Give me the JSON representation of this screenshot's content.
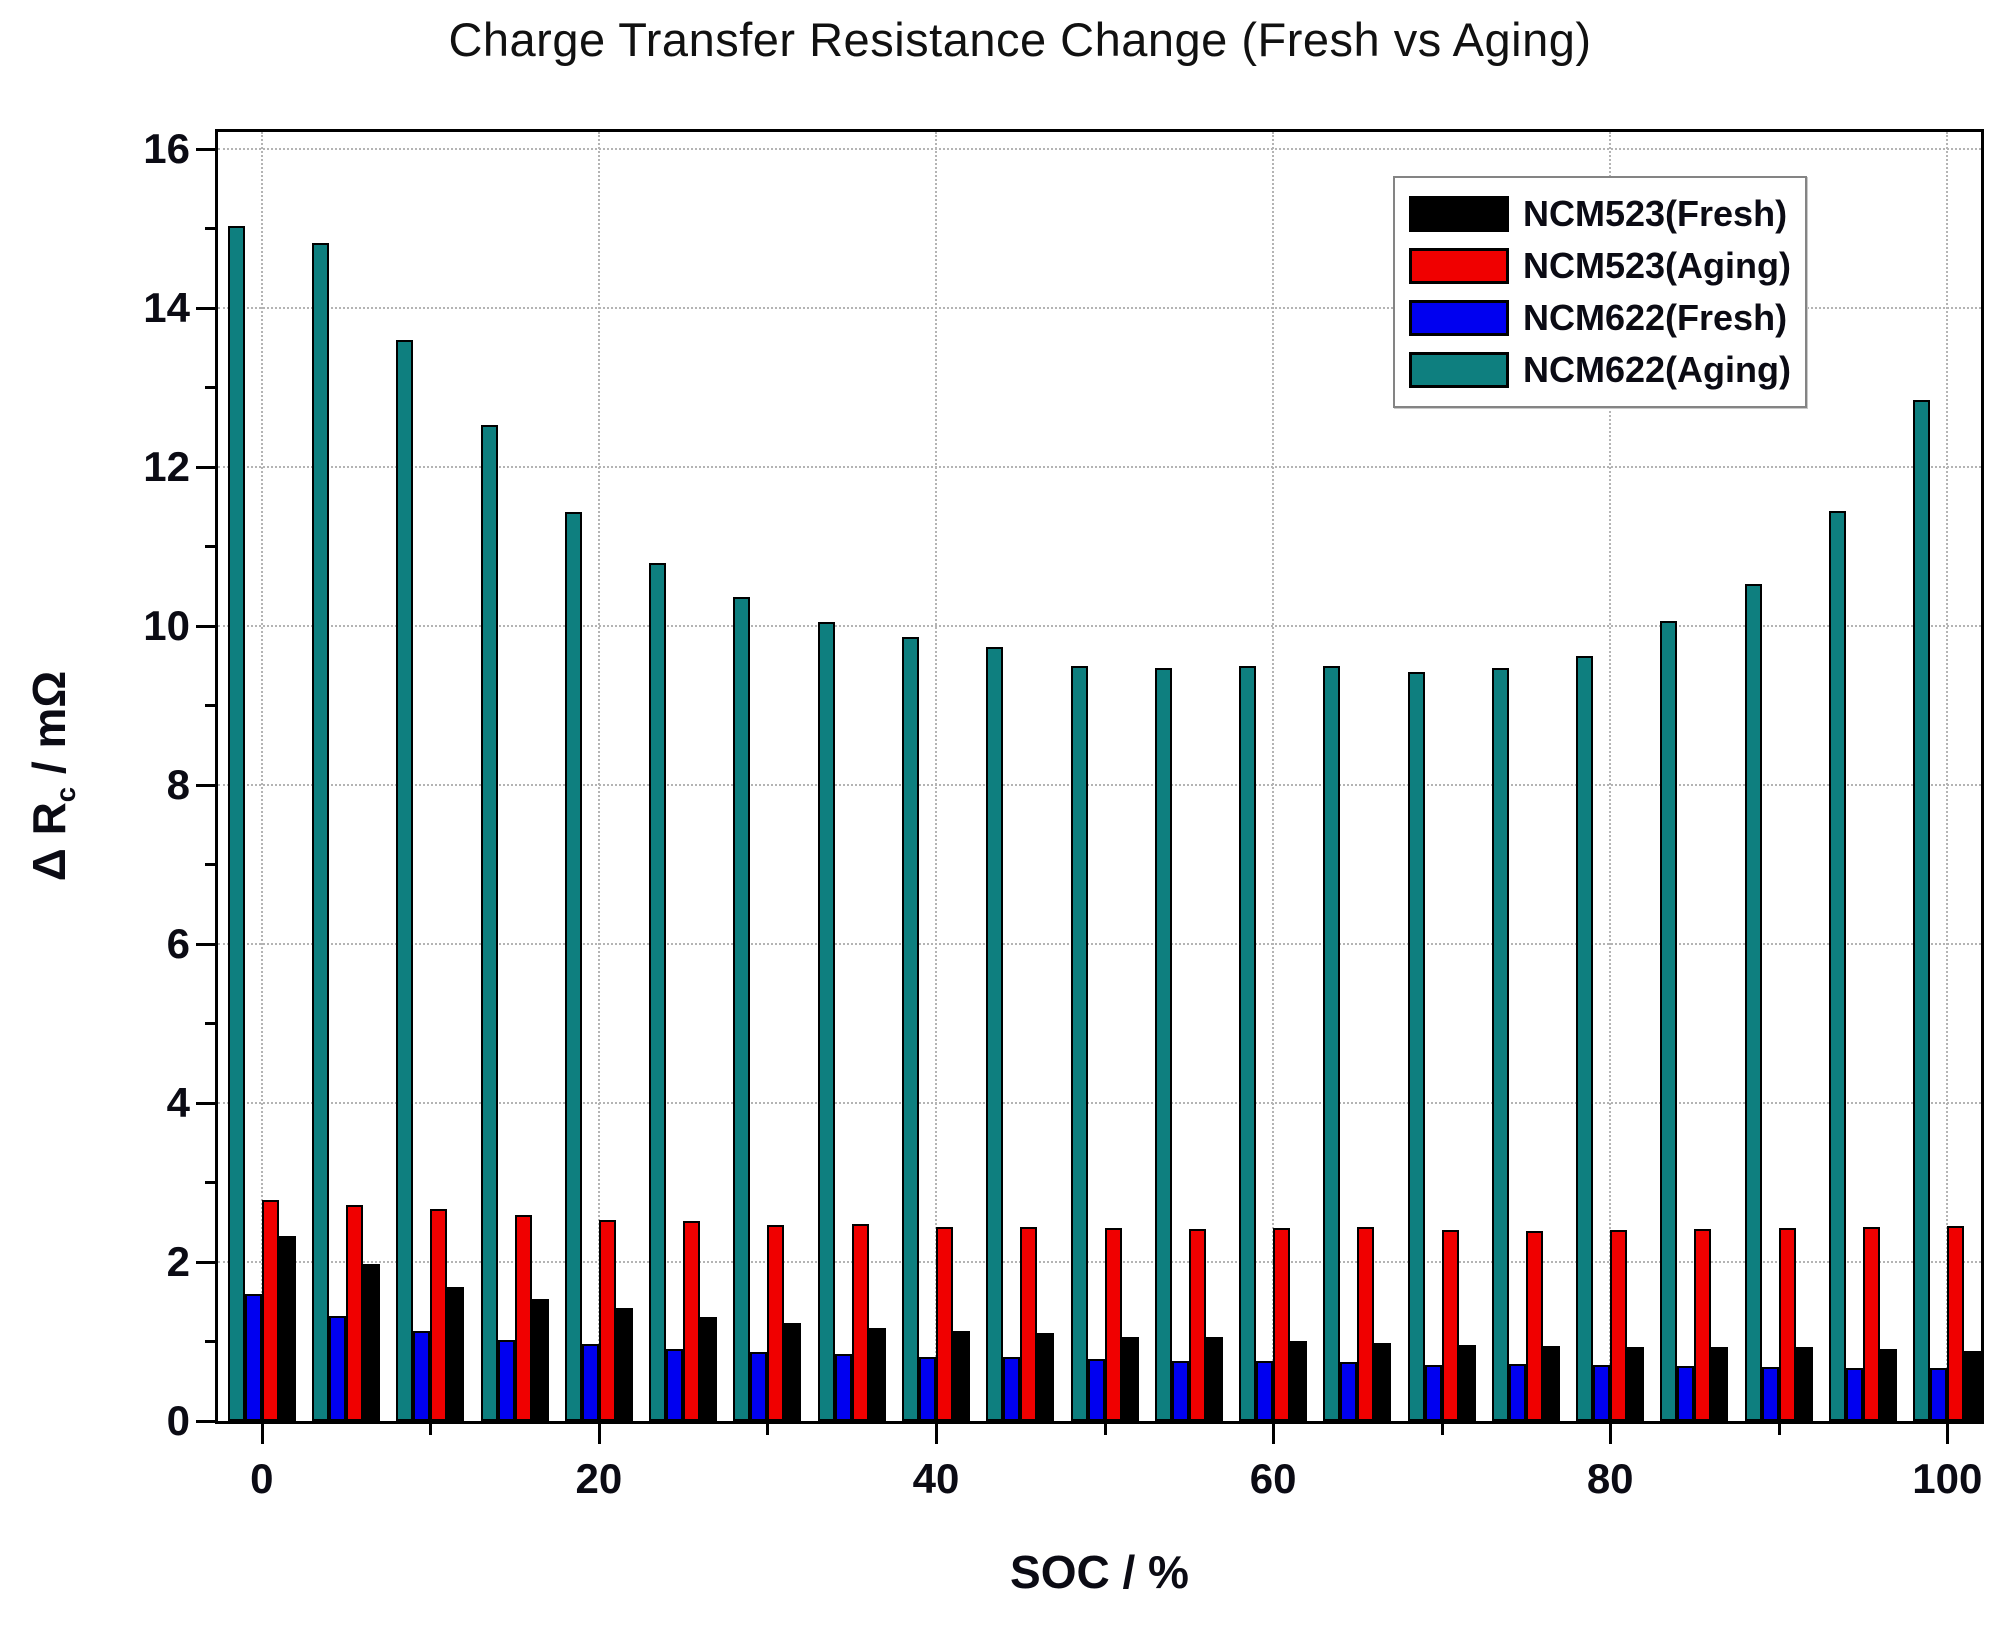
{
  "labels": {
    "title": "Charge Transfer Resistance Change (Fresh vs Aging)",
    "xlabel": "SOC / %",
    "ylabel_prefix": "Δ R",
    "ylabel_sub": "c",
    "ylabel_suffix": " / mΩ"
  },
  "chart_data": {
    "type": "bar",
    "title": "Charge Transfer Resistance Change (Fresh vs Aging)",
    "xlabel": "SOC / %",
    "ylabel": "Δ R_c / mΩ",
    "categories": [
      0,
      5,
      10,
      15,
      20,
      25,
      30,
      35,
      40,
      45,
      50,
      55,
      60,
      65,
      70,
      75,
      80,
      85,
      90,
      95,
      100
    ],
    "series": [
      {
        "name": "NCM523(Fresh)",
        "color": "#000000",
        "values": [
          2.33,
          1.98,
          1.69,
          1.53,
          1.42,
          1.31,
          1.23,
          1.17,
          1.13,
          1.11,
          1.06,
          1.06,
          1.01,
          0.98,
          0.96,
          0.94,
          0.93,
          0.93,
          0.93,
          0.9,
          0.88
        ]
      },
      {
        "name": "NCM523(Aging)",
        "color": "#f00000",
        "values": [
          2.78,
          2.72,
          2.67,
          2.59,
          2.53,
          2.52,
          2.47,
          2.48,
          2.44,
          2.44,
          2.43,
          2.42,
          2.43,
          2.44,
          2.4,
          2.39,
          2.4,
          2.42,
          2.43,
          2.44,
          2.45
        ]
      },
      {
        "name": "NCM622(Fresh)",
        "color": "#0000f0",
        "values": [
          1.6,
          1.32,
          1.13,
          1.02,
          0.97,
          0.91,
          0.87,
          0.84,
          0.8,
          0.8,
          0.78,
          0.76,
          0.76,
          0.74,
          0.71,
          0.72,
          0.7,
          0.69,
          0.68,
          0.67,
          0.67
        ]
      },
      {
        "name": "NCM622(Aging)",
        "color": "#0e7f7f",
        "values": [
          15.03,
          14.81,
          13.6,
          12.53,
          11.43,
          10.79,
          10.36,
          10.05,
          9.86,
          9.73,
          9.5,
          9.47,
          9.5,
          9.5,
          9.42,
          9.47,
          9.62,
          10.06,
          10.53,
          11.45,
          12.84
        ]
      }
    ],
    "xticks_major": [
      0,
      20,
      40,
      60,
      80,
      100
    ],
    "xticks_minor": [
      10,
      30,
      50,
      70,
      90
    ],
    "yticks_major": [
      0,
      2,
      4,
      6,
      8,
      10,
      12,
      14,
      16
    ],
    "yticks_minor": [
      1,
      3,
      5,
      7,
      9,
      11,
      13,
      15
    ],
    "xlim": [
      -2.6,
      102
    ],
    "ylim": [
      0,
      16.21
    ],
    "grid": "dotted",
    "legend_position": "top-right"
  }
}
